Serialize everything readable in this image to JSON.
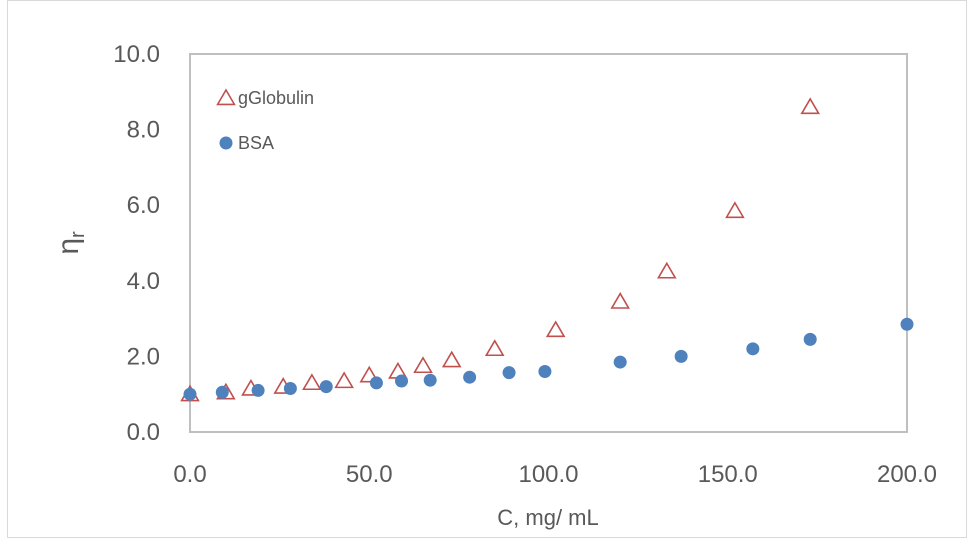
{
  "chart_data": {
    "type": "scatter",
    "title": "",
    "xlabel": "C, mg/ mL",
    "ylabel": "ηr",
    "ylabel_main": "η",
    "ylabel_sub": "r",
    "xlim": [
      0,
      200
    ],
    "ylim": [
      0,
      10
    ],
    "xticks": [
      "0.0",
      "50.0",
      "100.0",
      "150.0",
      "200.0"
    ],
    "yticks": [
      "0.0",
      "2.0",
      "4.0",
      "6.0",
      "8.0",
      "10.0"
    ],
    "grid": false,
    "legend_position": "upper-left-inside",
    "series": [
      {
        "name": "gGlobulin",
        "marker": "open-triangle",
        "color": "#C0504D",
        "x": [
          0,
          10,
          17,
          26,
          34,
          43,
          50,
          58,
          65,
          73,
          85,
          102,
          120,
          133,
          152,
          173
        ],
        "y": [
          1.0,
          1.05,
          1.15,
          1.2,
          1.3,
          1.35,
          1.5,
          1.6,
          1.75,
          1.9,
          2.2,
          2.7,
          3.45,
          4.25,
          5.85,
          8.6
        ]
      },
      {
        "name": "BSA",
        "marker": "filled-circle",
        "color": "#4F81BD",
        "x": [
          0,
          9,
          19,
          28,
          38,
          52,
          59,
          67,
          78,
          89,
          99,
          120,
          137,
          157,
          173,
          200
        ],
        "y": [
          1.0,
          1.05,
          1.1,
          1.15,
          1.2,
          1.3,
          1.35,
          1.37,
          1.45,
          1.57,
          1.6,
          1.85,
          2.0,
          2.2,
          2.45,
          2.85
        ]
      }
    ]
  }
}
